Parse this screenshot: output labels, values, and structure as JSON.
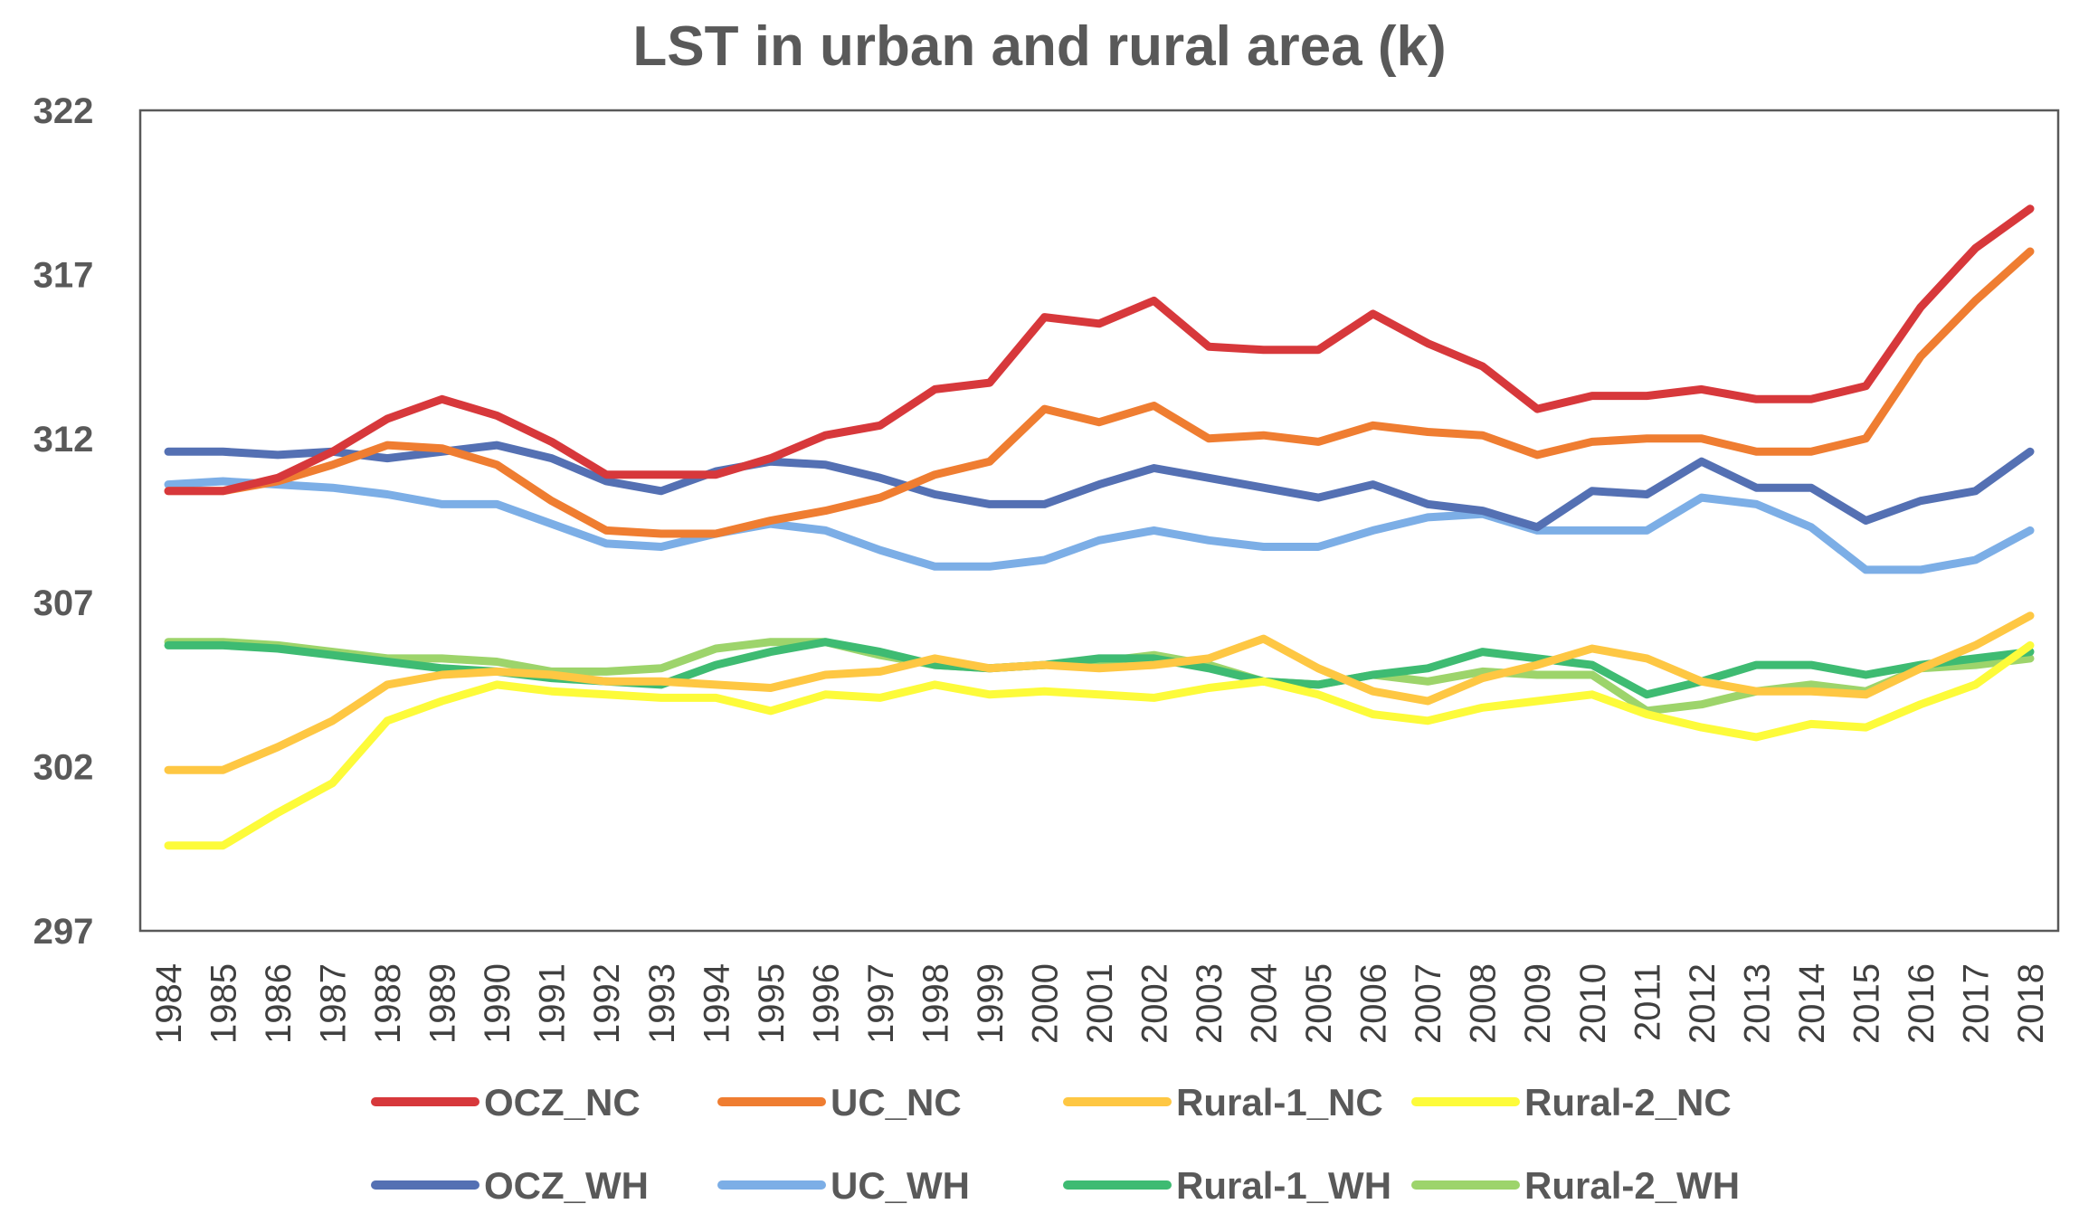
{
  "chart_data": {
    "type": "line",
    "title": "LST in urban and rural area (k)",
    "xlabel": "",
    "ylabel": "",
    "ylim": [
      297,
      322
    ],
    "yticks": [
      "297",
      "302",
      "307",
      "312",
      "317",
      "322"
    ],
    "x": [
      "1984",
      "1985",
      "1986",
      "1987",
      "1988",
      "1989",
      "1990",
      "1991",
      "1992",
      "1993",
      "1994",
      "1995",
      "1996",
      "1997",
      "1998",
      "1999",
      "2000",
      "2001",
      "2002",
      "2003",
      "2004",
      "2005",
      "2006",
      "2007",
      "2008",
      "2009",
      "2010",
      "2011",
      "2012",
      "2013",
      "2014",
      "2015",
      "2016",
      "2017",
      "2018"
    ],
    "legend_position": "bottom",
    "series": [
      {
        "name": "OCZ_NC",
        "color": "#d7383b",
        "values": [
          310.4,
          310.4,
          310.8,
          311.6,
          312.6,
          313.2,
          312.7,
          311.9,
          310.9,
          310.9,
          310.9,
          311.4,
          312.1,
          312.4,
          313.5,
          313.7,
          315.7,
          315.5,
          316.2,
          314.8,
          314.7,
          314.7,
          315.8,
          314.9,
          314.2,
          312.9,
          313.3,
          313.3,
          313.5,
          313.2,
          313.2,
          313.6,
          316.0,
          317.8,
          319.0
        ]
      },
      {
        "name": "UC_NC",
        "color": "#ef7d31",
        "values": [
          310.4,
          310.4,
          310.7,
          311.2,
          311.8,
          311.7,
          311.2,
          310.1,
          309.2,
          309.1,
          309.1,
          309.5,
          309.8,
          310.2,
          310.9,
          311.3,
          312.9,
          312.5,
          313.0,
          312.0,
          312.1,
          311.9,
          312.4,
          312.2,
          312.1,
          311.5,
          311.9,
          312.0,
          312.0,
          311.6,
          311.6,
          312.0,
          314.5,
          316.2,
          317.7
        ]
      },
      {
        "name": "Rural-1_NC",
        "color": "#fec743",
        "values": [
          301.9,
          301.9,
          302.6,
          303.4,
          304.5,
          304.8,
          304.9,
          304.8,
          304.6,
          304.6,
          304.5,
          304.4,
          304.8,
          304.9,
          305.3,
          305.0,
          305.1,
          305.0,
          305.1,
          305.3,
          305.9,
          305.0,
          304.3,
          304.0,
          304.7,
          305.1,
          305.6,
          305.3,
          304.6,
          304.3,
          304.3,
          304.2,
          305.0,
          305.7,
          306.6
        ]
      },
      {
        "name": "Rural-2_NC",
        "color": "#fdfb3a",
        "values": [
          299.6,
          299.6,
          300.6,
          301.5,
          303.4,
          304.0,
          304.5,
          304.3,
          304.2,
          304.1,
          304.1,
          303.7,
          304.2,
          304.1,
          304.5,
          304.2,
          304.3,
          304.2,
          304.1,
          304.4,
          304.6,
          304.2,
          303.6,
          303.4,
          303.8,
          304.0,
          304.2,
          303.6,
          303.2,
          302.9,
          303.3,
          303.2,
          303.9,
          304.5,
          305.7
        ]
      },
      {
        "name": "OCZ_WH",
        "color": "#5470b3",
        "values": [
          311.6,
          311.6,
          311.5,
          311.6,
          311.4,
          311.6,
          311.8,
          311.4,
          310.7,
          310.4,
          311.0,
          311.3,
          311.2,
          310.8,
          310.3,
          310.0,
          310.0,
          310.6,
          311.1,
          310.8,
          310.5,
          310.2,
          310.6,
          310.0,
          309.8,
          309.3,
          310.4,
          310.3,
          311.3,
          310.5,
          310.5,
          309.5,
          310.1,
          310.4,
          311.6
        ]
      },
      {
        "name": "UC_WH",
        "color": "#7caee6",
        "values": [
          310.6,
          310.7,
          310.6,
          310.5,
          310.3,
          310.0,
          310.0,
          309.4,
          308.8,
          308.7,
          309.1,
          309.4,
          309.2,
          308.6,
          308.1,
          308.1,
          308.3,
          308.9,
          309.2,
          308.9,
          308.7,
          308.7,
          309.2,
          309.6,
          309.7,
          309.2,
          309.2,
          309.2,
          310.2,
          310.0,
          309.3,
          308.0,
          308.0,
          308.3,
          309.2
        ]
      },
      {
        "name": "Rural-1_WH",
        "color": "#3ebb72",
        "values": [
          305.7,
          305.7,
          305.6,
          305.4,
          305.2,
          305.0,
          304.9,
          304.7,
          304.6,
          304.5,
          305.1,
          305.5,
          305.8,
          305.5,
          305.1,
          305.0,
          305.1,
          305.3,
          305.3,
          305.0,
          304.6,
          304.5,
          304.8,
          305.0,
          305.5,
          305.3,
          305.1,
          304.2,
          304.6,
          305.1,
          305.1,
          304.8,
          305.1,
          305.3,
          305.5
        ]
      },
      {
        "name": "Rural-2_WH",
        "color": "#9dd46b",
        "values": [
          305.8,
          305.8,
          305.7,
          305.5,
          305.3,
          305.3,
          305.2,
          304.9,
          304.9,
          305.0,
          305.6,
          305.8,
          305.8,
          305.4,
          305.1,
          305.0,
          305.1,
          305.2,
          305.4,
          305.1,
          304.6,
          304.5,
          304.8,
          304.6,
          304.9,
          304.8,
          304.8,
          303.7,
          303.9,
          304.3,
          304.5,
          304.3,
          305.0,
          305.1,
          305.3
        ]
      }
    ]
  }
}
